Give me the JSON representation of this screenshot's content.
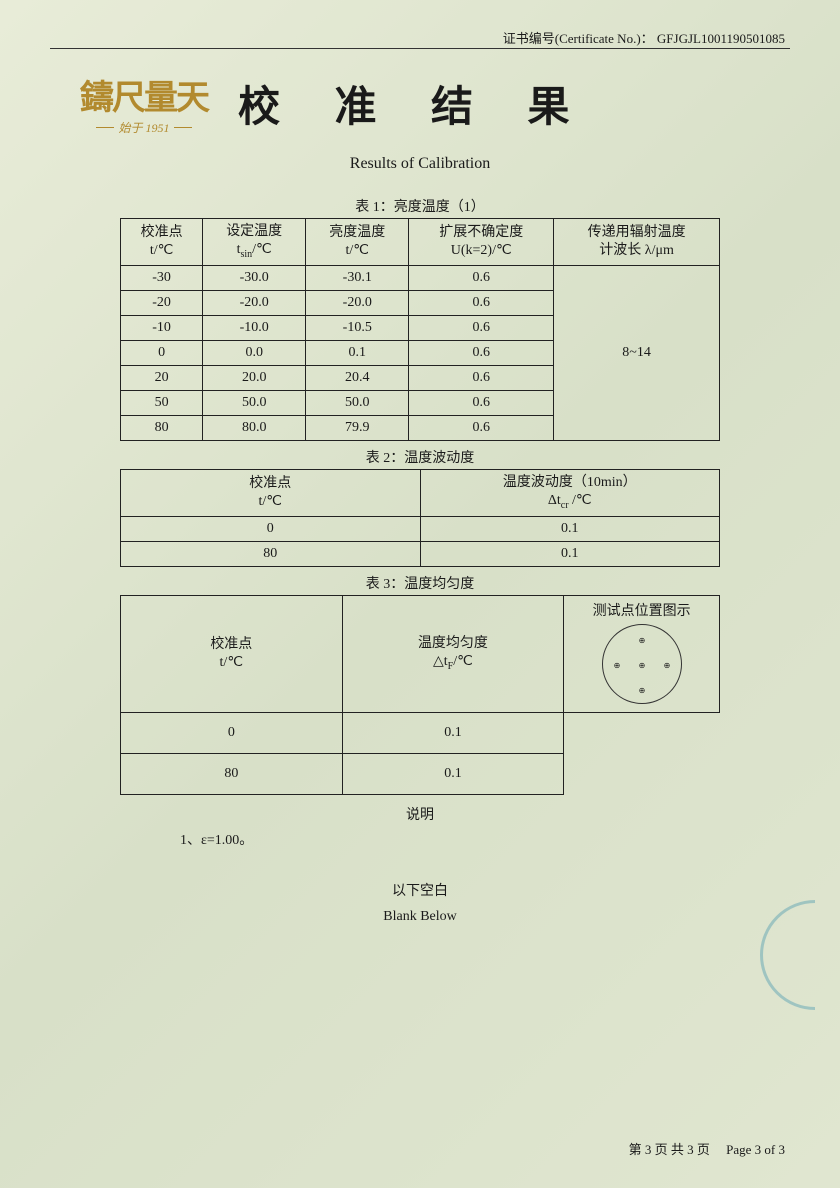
{
  "header": {
    "cert_label": "证书编号(Certificate No.)：",
    "cert_no": "GFJGJL1001190501085",
    "logo_top": "鑄尺量天",
    "logo_sub": "始于 1951",
    "title": "校 准 结 果",
    "subtitle": "Results of Calibration"
  },
  "table1": {
    "caption": "表 1：亮度温度（1）",
    "headers": {
      "c1a": "校准点",
      "c1b": "t/℃",
      "c2a": "设定温度",
      "c2b_html": "t<sub>sin</sub>/℃",
      "c3a": "亮度温度",
      "c3b": "t/℃",
      "c4a": "扩展不确定度",
      "c4b": "U(k=2)/℃",
      "c5a": "传递用辐射温度",
      "c5b": "计波长 λ/μm"
    },
    "rows": [
      {
        "p": "-30",
        "s": "-30.0",
        "b": "-30.1",
        "u": "0.6"
      },
      {
        "p": "-20",
        "s": "-20.0",
        "b": "-20.0",
        "u": "0.6"
      },
      {
        "p": "-10",
        "s": "-10.0",
        "b": "-10.5",
        "u": "0.6"
      },
      {
        "p": "0",
        "s": "0.0",
        "b": "0.1",
        "u": "0.6"
      },
      {
        "p": "20",
        "s": "20.0",
        "b": "20.4",
        "u": "0.6"
      },
      {
        "p": "50",
        "s": "50.0",
        "b": "50.0",
        "u": "0.6"
      },
      {
        "p": "80",
        "s": "80.0",
        "b": "79.9",
        "u": "0.6"
      }
    ],
    "wavelength": "8~14"
  },
  "table2": {
    "caption": "表 2：温度波动度",
    "h1a": "校准点",
    "h1b": "t/℃",
    "h2a": "温度波动度（10min）",
    "h2b_html": "Δt<sub>cr</sub> /℃",
    "rows": [
      {
        "p": "0",
        "v": "0.1"
      },
      {
        "p": "80",
        "v": "0.1"
      }
    ]
  },
  "table3": {
    "caption": "表 3：温度均匀度",
    "h1a": "校准点",
    "h1b": "t/℃",
    "h2a": "温度均匀度",
    "h2b_html": "△t<sub>F</sub>/℃",
    "h3": "测试点位置图示",
    "rows": [
      {
        "p": "0",
        "v": "0.1"
      },
      {
        "p": "80",
        "v": "0.1"
      }
    ]
  },
  "notes": {
    "title": "说明",
    "line1": "1、ε=1.00。",
    "blank_cn": "以下空白",
    "blank_en": "Blank Below"
  },
  "footer": {
    "cn": "第 3 页 共 3 页",
    "en": "Page 3 of 3"
  },
  "colors": {
    "border": "#222222",
    "logo": "#b28a2e",
    "stamp": "#2a8aa8",
    "bg1": "#e8ecd8",
    "bg2": "#d8e0c8"
  }
}
